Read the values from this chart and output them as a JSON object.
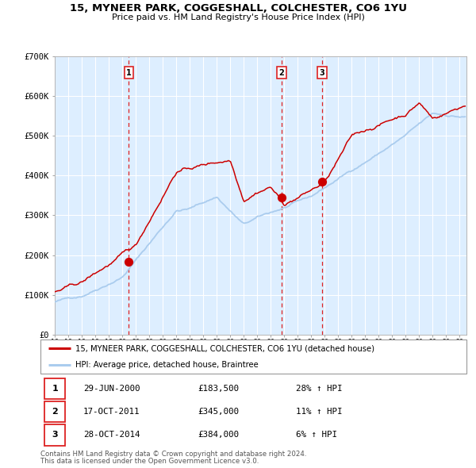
{
  "title_line1": "15, MYNEER PARK, COGGESHALL, COLCHESTER, CO6 1YU",
  "title_line2": "Price paid vs. HM Land Registry's House Price Index (HPI)",
  "legend_line1": "15, MYNEER PARK, COGGESHALL, COLCHESTER, CO6 1YU (detached house)",
  "legend_line2": "HPI: Average price, detached house, Braintree",
  "footer_line1": "Contains HM Land Registry data © Crown copyright and database right 2024.",
  "footer_line2": "This data is licensed under the Open Government Licence v3.0.",
  "red_color": "#cc0000",
  "blue_color": "#aaccee",
  "dashed_color": "#dd2222",
  "bg_color": "#ddeeff",
  "sale_points": [
    {
      "label": "1",
      "date": "29-JUN-2000",
      "price": 183500,
      "pct": "28%",
      "x_year": 2000.49
    },
    {
      "label": "2",
      "date": "17-OCT-2011",
      "price": 345000,
      "pct": "11%",
      "x_year": 2011.79
    },
    {
      "label": "3",
      "date": "28-OCT-2014",
      "price": 384000,
      "pct": "6%",
      "x_year": 2014.81
    }
  ],
  "ylim": [
    0,
    700000
  ],
  "xlim_start": 1995.0,
  "xlim_end": 2025.5,
  "yticks": [
    0,
    100000,
    200000,
    300000,
    400000,
    500000,
    600000,
    700000
  ],
  "ytick_labels": [
    "£0",
    "£100K",
    "£200K",
    "£300K",
    "£400K",
    "£500K",
    "£600K",
    "£700K"
  ]
}
